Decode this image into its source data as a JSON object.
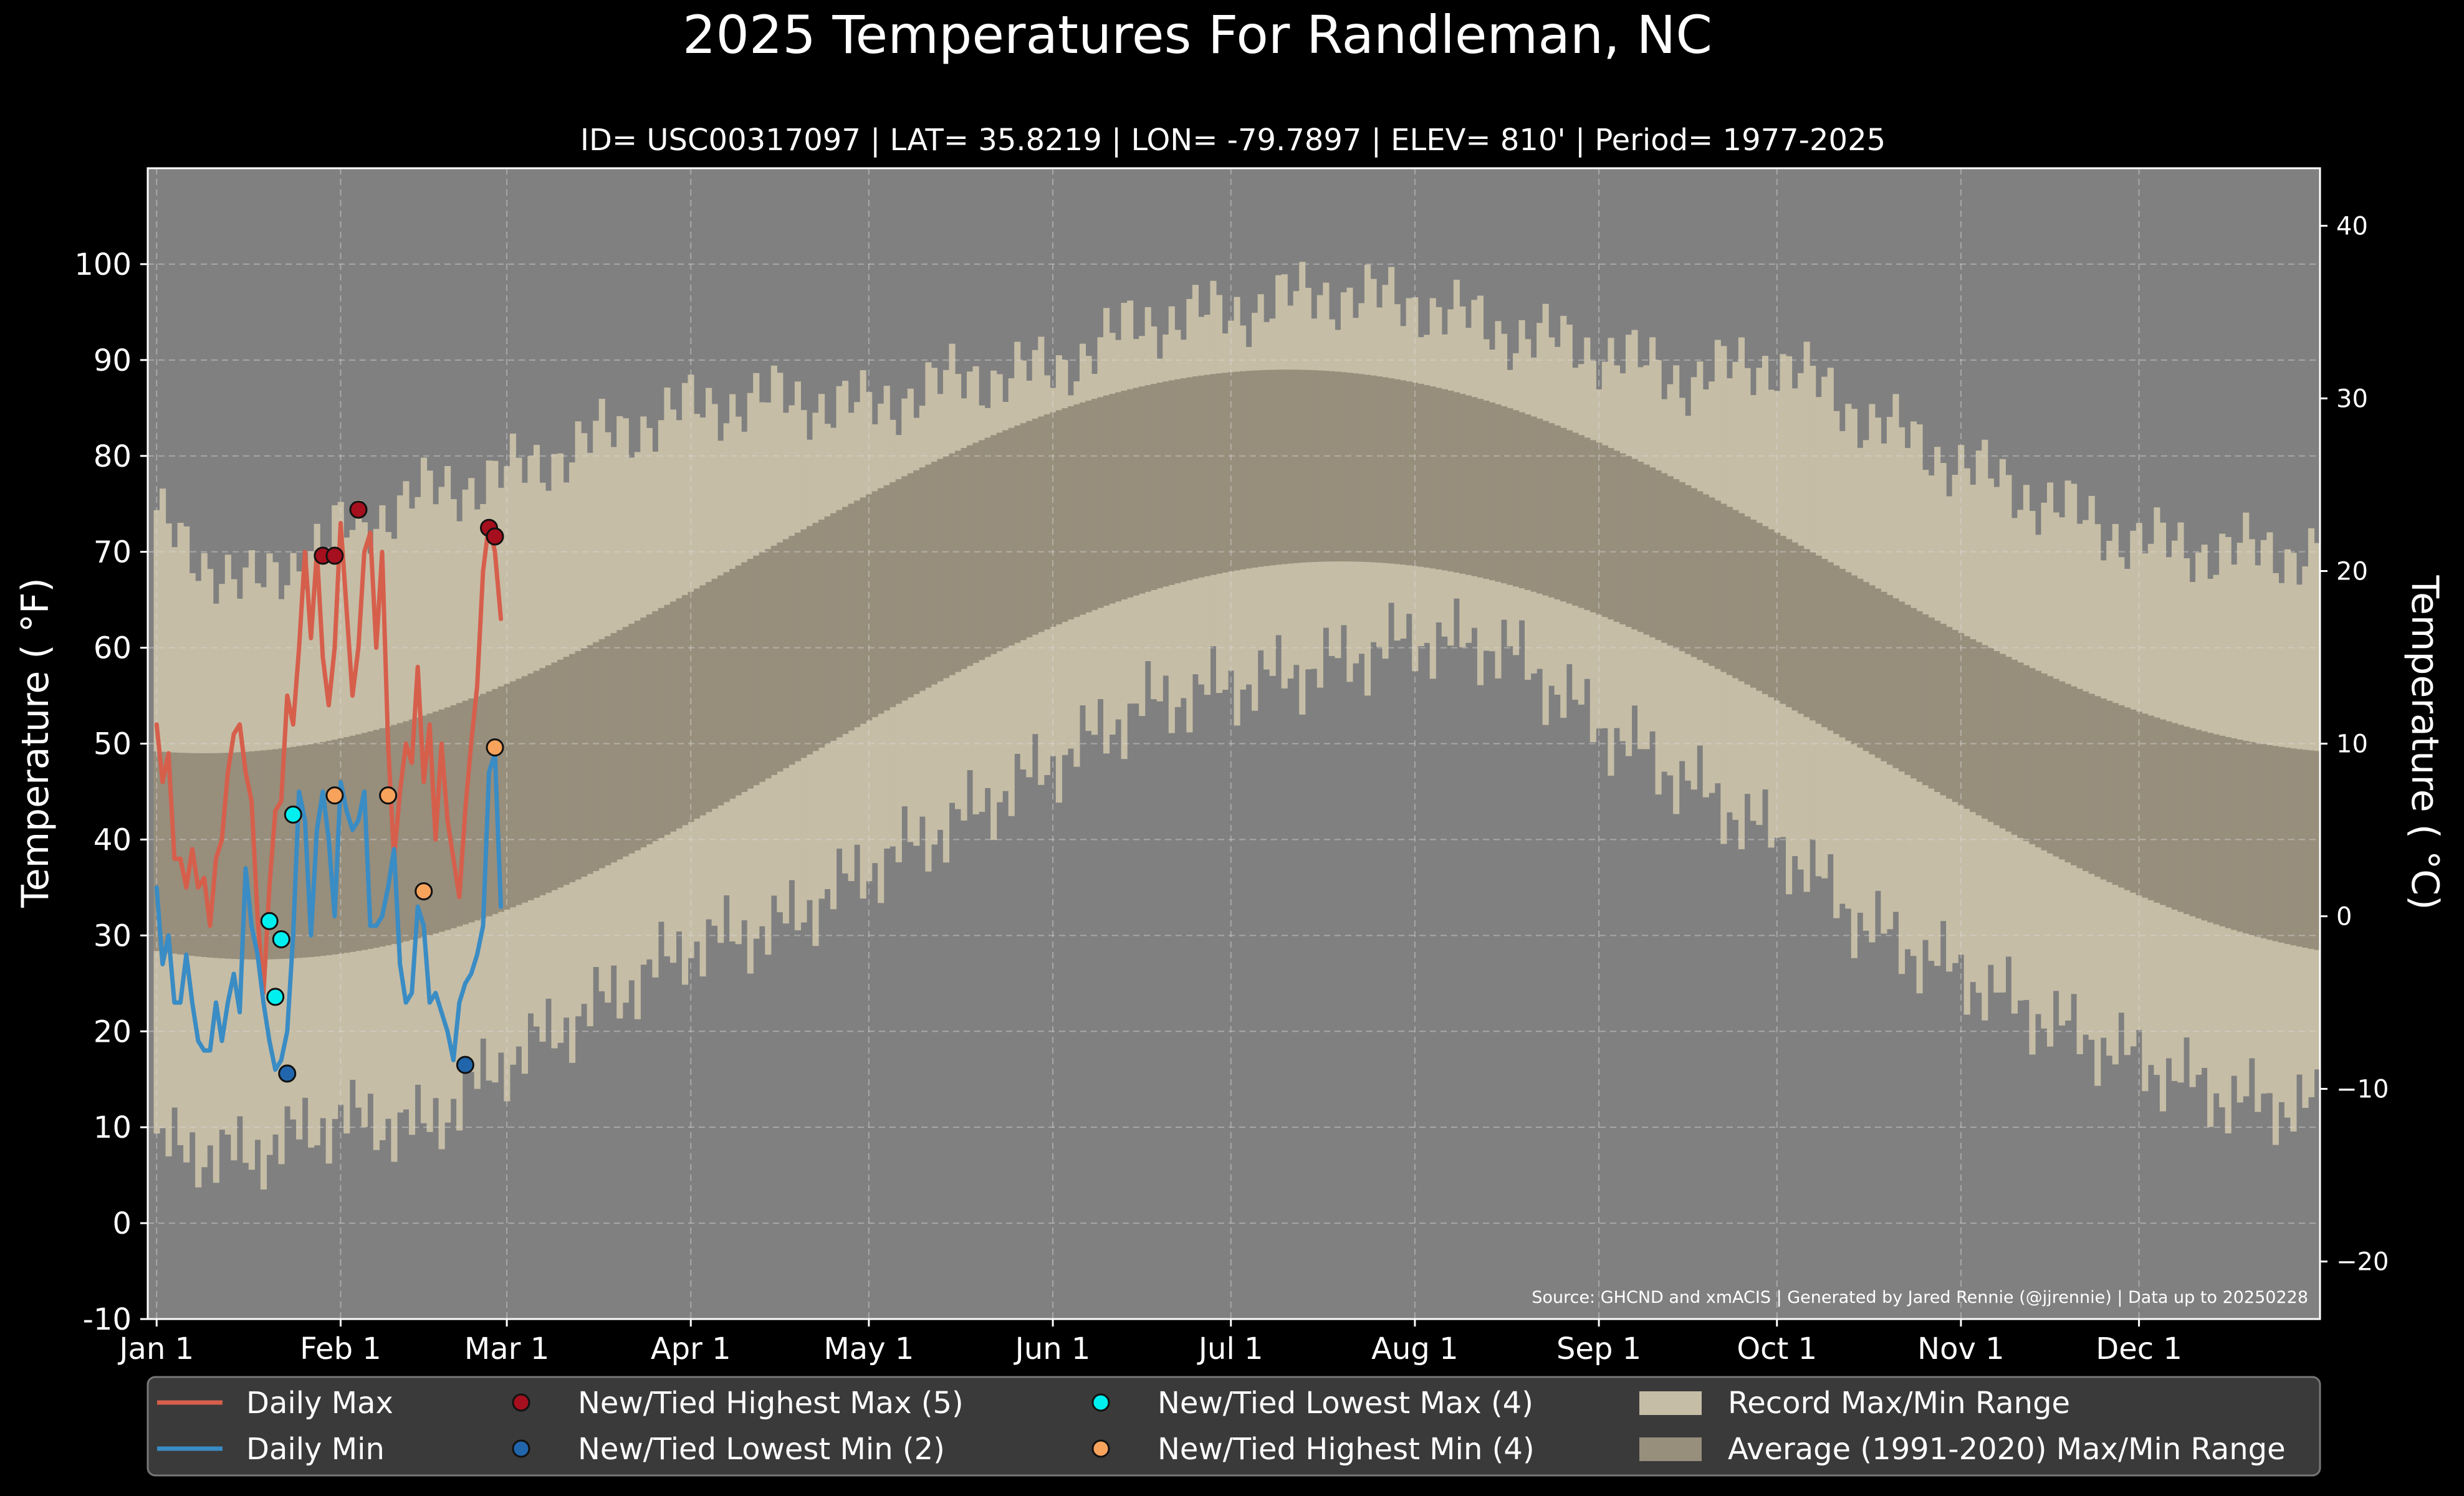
{
  "chart_data": {
    "type": "line",
    "title": "2025 Temperatures For Randleman, NC",
    "subtitle": "ID= USC00317097 | LAT= 35.8219 | LON= -79.7897 | ELEV= 810' | Period= 1977-2025",
    "ylabel": "Temperature ( °F)",
    "ylabel_right": "Temperature ( °C)",
    "source": "Source: GHCND and xmACIS | Generated by Jared Rennie (@jjrennie) | Data up to 20250228",
    "ylim": [
      -10,
      110
    ],
    "xlim": [
      -1.5,
      364.5
    ],
    "yticks": [
      -10,
      0,
      10,
      20,
      30,
      40,
      50,
      60,
      70,
      80,
      90,
      100
    ],
    "yticks_right": [
      -20,
      -10,
      0,
      10,
      20,
      30,
      40
    ],
    "xticks": [
      {
        "day": 0,
        "label": "Jan 1"
      },
      {
        "day": 31,
        "label": "Feb 1"
      },
      {
        "day": 59,
        "label": "Mar 1"
      },
      {
        "day": 90,
        "label": "Apr 1"
      },
      {
        "day": 120,
        "label": "May 1"
      },
      {
        "day": 151,
        "label": "Jun 1"
      },
      {
        "day": 181,
        "label": "Jul 1"
      },
      {
        "day": 212,
        "label": "Aug 1"
      },
      {
        "day": 243,
        "label": "Sep 1"
      },
      {
        "day": 273,
        "label": "Oct 1"
      },
      {
        "day": 304,
        "label": "Nov 1"
      },
      {
        "day": 334,
        "label": "Dec 1"
      }
    ],
    "grid": true,
    "legend_position": "bottom",
    "colors": {
      "plot_bg": "#808080",
      "record": "#c6bda6",
      "normal": "#978e7c",
      "daily_max": "#d65f4c",
      "daily_min": "#3a8cc4",
      "new_high_max": "#a50f1e",
      "new_low_min": "#2166ac",
      "new_low_max": "#00f0f0",
      "new_high_min": "#f7a35c"
    },
    "record_max_knots": [
      [
        0,
        73
      ],
      [
        15,
        66
      ],
      [
        31,
        72
      ],
      [
        45,
        76
      ],
      [
        59,
        78
      ],
      [
        75,
        82
      ],
      [
        90,
        85
      ],
      [
        105,
        86
      ],
      [
        120,
        85
      ],
      [
        135,
        88
      ],
      [
        151,
        89
      ],
      [
        166,
        94
      ],
      [
        181,
        95
      ],
      [
        196,
        97
      ],
      [
        212,
        96
      ],
      [
        227,
        93
      ],
      [
        243,
        91
      ],
      [
        258,
        88
      ],
      [
        273,
        90
      ],
      [
        288,
        84
      ],
      [
        304,
        79
      ],
      [
        319,
        75
      ],
      [
        334,
        71
      ],
      [
        349,
        70
      ],
      [
        364,
        70
      ]
    ],
    "record_min_knots": [
      [
        0,
        8
      ],
      [
        15,
        7
      ],
      [
        31,
        11
      ],
      [
        45,
        10
      ],
      [
        59,
        17
      ],
      [
        75,
        23
      ],
      [
        90,
        29
      ],
      [
        105,
        31
      ],
      [
        120,
        37
      ],
      [
        135,
        42
      ],
      [
        151,
        48
      ],
      [
        166,
        54
      ],
      [
        181,
        56
      ],
      [
        196,
        58
      ],
      [
        212,
        61
      ],
      [
        227,
        60
      ],
      [
        243,
        52
      ],
      [
        258,
        46
      ],
      [
        273,
        40
      ],
      [
        288,
        31
      ],
      [
        304,
        26
      ],
      [
        319,
        21
      ],
      [
        334,
        17
      ],
      [
        349,
        13
      ],
      [
        364,
        12
      ]
    ],
    "normal_max": {
      "min": 49,
      "min_day": 8,
      "max": 89,
      "max_day": 199
    },
    "normal_min": {
      "min": 27.5,
      "min_day": 17,
      "max": 69,
      "max_day": 204
    },
    "series": [
      {
        "name": "Daily Max",
        "x": [
          0,
          1,
          2,
          3,
          4,
          5,
          6,
          7,
          8,
          9,
          10,
          11,
          12,
          13,
          14,
          15,
          16,
          17,
          18,
          19,
          20,
          21,
          22,
          23,
          24,
          25,
          26,
          27,
          28,
          29,
          30,
          31,
          32,
          33,
          34,
          35,
          36,
          37,
          38,
          39,
          40,
          41,
          42,
          43,
          44,
          45,
          46,
          47,
          48,
          49,
          50,
          51,
          52,
          53,
          54,
          55,
          56,
          57,
          58
        ],
        "values": [
          52,
          46,
          49,
          38,
          38,
          35,
          39,
          35,
          36,
          31,
          38,
          40,
          47,
          51,
          52,
          47,
          44,
          32,
          24,
          35,
          43,
          44,
          55,
          52,
          60,
          70,
          61,
          70,
          59,
          54,
          60,
          73,
          64,
          55,
          60,
          70,
          72,
          60,
          70,
          50,
          38,
          45,
          50,
          48,
          58,
          46,
          52,
          40,
          50,
          42,
          38,
          34,
          43,
          50,
          56,
          68,
          73,
          70,
          63
        ]
      },
      {
        "name": "Daily Min",
        "x": [
          0,
          1,
          2,
          3,
          4,
          5,
          6,
          7,
          8,
          9,
          10,
          11,
          12,
          13,
          14,
          15,
          16,
          17,
          18,
          19,
          20,
          21,
          22,
          23,
          24,
          25,
          26,
          27,
          28,
          29,
          30,
          31,
          32,
          33,
          34,
          35,
          36,
          37,
          38,
          39,
          40,
          41,
          42,
          43,
          44,
          45,
          46,
          47,
          48,
          49,
          50,
          51,
          52,
          53,
          54,
          55,
          56,
          57,
          58
        ],
        "values": [
          35,
          27,
          30,
          23,
          23,
          28,
          23,
          19,
          18,
          18,
          23,
          19,
          23,
          26,
          22,
          37,
          31,
          28,
          23,
          19,
          16,
          17,
          20,
          30,
          45,
          42,
          30,
          41,
          45,
          40,
          32,
          46,
          43,
          41,
          42,
          45,
          31,
          31,
          32,
          35,
          39,
          27,
          23,
          24,
          33,
          31,
          23,
          24,
          22,
          20,
          17,
          23,
          25,
          26,
          28,
          31,
          47,
          49,
          33
        ]
      },
      {
        "name": "New/Tied Highest Max (5)",
        "x": [
          28,
          30,
          34,
          56,
          57
        ],
        "values": [
          69.6,
          69.6,
          74.4,
          72.5,
          71.6
        ]
      },
      {
        "name": "New/Tied Lowest Min (2)",
        "x": [
          22,
          52
        ],
        "values": [
          15.6,
          16.5
        ]
      },
      {
        "name": "New/Tied Lowest Max (4)",
        "x": [
          19,
          21,
          20,
          23
        ],
        "values": [
          31.5,
          29.6,
          23.6,
          42.6
        ]
      },
      {
        "name": "New/Tied Highest Min (4)",
        "x": [
          30,
          39,
          45,
          57
        ],
        "values": [
          44.6,
          44.6,
          34.6,
          49.6
        ]
      }
    ],
    "legend": [
      {
        "label": "Daily Max",
        "kind": "line",
        "color_key": "daily_max"
      },
      {
        "label": "Daily Min",
        "kind": "line",
        "color_key": "daily_min"
      },
      {
        "label": "New/Tied Highest Max (5)",
        "kind": "dot",
        "color_key": "new_high_max"
      },
      {
        "label": "New/Tied Lowest Min (2)",
        "kind": "dot",
        "color_key": "new_low_min"
      },
      {
        "label": "New/Tied Lowest Max (4)",
        "kind": "dot",
        "color_key": "new_low_max"
      },
      {
        "label": "New/Tied Highest Min (4)",
        "kind": "dot",
        "color_key": "new_high_min"
      },
      {
        "label": "Record Max/Min Range",
        "kind": "box",
        "color_key": "record"
      },
      {
        "label": "Average (1991-2020) Max/Min Range",
        "kind": "box",
        "color_key": "normal"
      }
    ]
  }
}
